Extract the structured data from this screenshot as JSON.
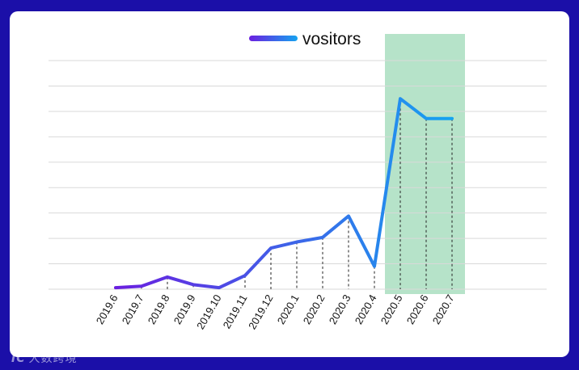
{
  "chart_data": {
    "type": "line",
    "legend": {
      "label": "vositors",
      "placement": "top-center"
    },
    "categories": [
      "2019.6",
      "2019.7",
      "2019.8",
      "2019.9",
      "2019.10",
      "2019.11",
      "2019.12",
      "2020.1",
      "2020.2",
      "2020.3",
      "2020.4",
      "2020.5",
      "2020.6",
      "2020.7"
    ],
    "series": [
      {
        "name": "vositors",
        "values": [
          1,
          2,
          8,
          3,
          1,
          9,
          27,
          31,
          34,
          48,
          15,
          125,
          112,
          112
        ]
      }
    ],
    "ylim": [
      0,
      150
    ],
    "grid": true,
    "highlight": {
      "from": "2020.5",
      "to": "2020.7",
      "color": "#b6e3c9"
    },
    "gradient": {
      "start": "#6a1fe0",
      "end": "#15a3f0"
    }
  },
  "watermark": {
    "mark": "IC",
    "text": "大数跨境"
  }
}
